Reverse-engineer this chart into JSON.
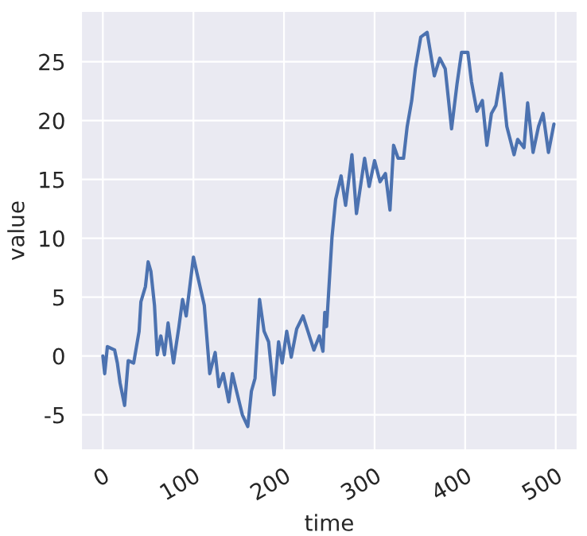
{
  "chart_data": {
    "type": "line",
    "xlabel": "time",
    "ylabel": "value",
    "x": [
      0,
      2,
      5,
      13,
      16,
      19,
      24,
      28,
      34,
      40,
      42,
      47,
      50,
      53,
      57,
      60,
      64,
      68,
      72,
      78,
      84,
      88,
      92,
      100,
      104,
      112,
      118,
      124,
      128,
      133,
      139,
      143,
      147,
      154,
      160,
      164,
      168,
      173,
      178,
      183,
      189,
      194,
      198,
      203,
      208,
      214,
      221,
      233,
      239,
      243,
      245,
      247,
      253,
      257,
      263,
      268,
      275,
      280,
      289,
      294,
      300,
      306,
      312,
      317,
      321,
      326,
      332,
      336,
      341,
      345,
      351,
      358,
      366,
      372,
      378,
      385,
      391,
      396,
      403,
      407,
      413,
      419,
      424,
      429,
      434,
      440,
      446,
      454,
      458,
      465,
      469,
      475,
      481,
      486,
      492,
      498
    ],
    "values": [
      0,
      -1.5,
      0.8,
      0.5,
      -0.6,
      -2.3,
      -4.2,
      -0.4,
      -0.6,
      2.1,
      4.6,
      5.9,
      8.0,
      7.2,
      4.3,
      0.1,
      1.7,
      0.1,
      2.8,
      -0.6,
      2.5,
      4.8,
      3.4,
      8.4,
      7.0,
      4.3,
      -1.5,
      0.3,
      -2.6,
      -1.5,
      -3.9,
      -1.5,
      -2.8,
      -5.0,
      -6.0,
      -3.0,
      -1.9,
      4.8,
      2.1,
      1.2,
      -3.3,
      1.2,
      -0.6,
      2.1,
      -0.1,
      2.3,
      3.4,
      0.5,
      1.7,
      0.4,
      3.7,
      2.5,
      10.1,
      13.3,
      15.3,
      12.8,
      17.1,
      12.1,
      16.8,
      14.4,
      16.6,
      14.8,
      15.5,
      12.4,
      17.9,
      16.8,
      16.8,
      19.5,
      21.7,
      24.4,
      27.1,
      27.5,
      23.8,
      25.3,
      24.4,
      19.3,
      23.1,
      25.8,
      25.8,
      23.3,
      20.8,
      21.7,
      17.9,
      20.6,
      21.3,
      24.0,
      19.5,
      17.1,
      18.4,
      17.7,
      21.5,
      17.3,
      19.5,
      20.6,
      17.3,
      19.7
    ],
    "color": "#4c72b0",
    "xlim": [
      -24,
      524
    ],
    "ylim": [
      -8.0,
      29.3
    ],
    "xticks": [
      0,
      100,
      200,
      300,
      400,
      500
    ],
    "yticks": [
      -5,
      0,
      5,
      10,
      15,
      20,
      25
    ],
    "grid": true
  }
}
